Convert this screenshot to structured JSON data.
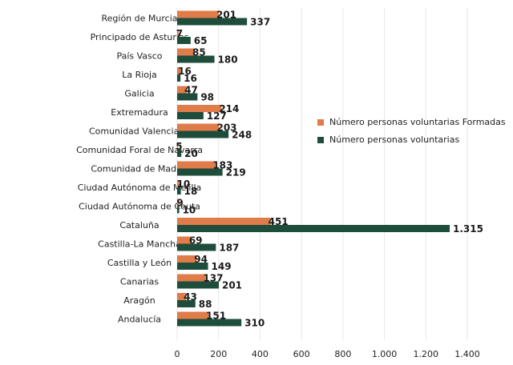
{
  "chart_data": {
    "type": "hbar",
    "categories": [
      "Región de Murcia",
      "Principado de Asturias",
      "País Vasco",
      "La Rioja",
      "Galicia",
      "Extremadura",
      "Comunidad Valenciana",
      "Comunidad Foral de Navarra",
      "Comunidad de Madrid",
      "Ciudad Autónoma de Melilla",
      "Ciudad Autónoma de Ceuta",
      "Cataluña",
      "Castilla-La Mancha",
      "Castilla y León",
      "Canarias",
      "Aragón",
      "Andalucía"
    ],
    "series": [
      {
        "name": "Número personas voluntarias Formadas",
        "color": "#e07b4a",
        "values": [
          201,
          7,
          85,
          16,
          47,
          214,
          203,
          5,
          183,
          10,
          9,
          451,
          69,
          94,
          137,
          43,
          151
        ]
      },
      {
        "name": "Número personas voluntarias",
        "color": "#1e4d3b",
        "values": [
          337,
          65,
          180,
          16,
          98,
          127,
          248,
          20,
          219,
          18,
          10,
          1315,
          187,
          149,
          201,
          88,
          310
        ],
        "value_labels": [
          "337",
          "65",
          "180",
          "16",
          "98",
          "127",
          "248",
          "20",
          "219",
          "18",
          "10",
          "1.315",
          "187",
          "149",
          "201",
          "88",
          "310"
        ]
      }
    ],
    "xlim": [
      0,
      1400
    ],
    "xticks": [
      0,
      200,
      400,
      600,
      800,
      {
        "value": 1000,
        "label": "1.000"
      },
      {
        "value": 1200,
        "label": "1.200"
      },
      {
        "value": 1400,
        "label": "1.400"
      }
    ],
    "grid": true,
    "legend": "right"
  }
}
